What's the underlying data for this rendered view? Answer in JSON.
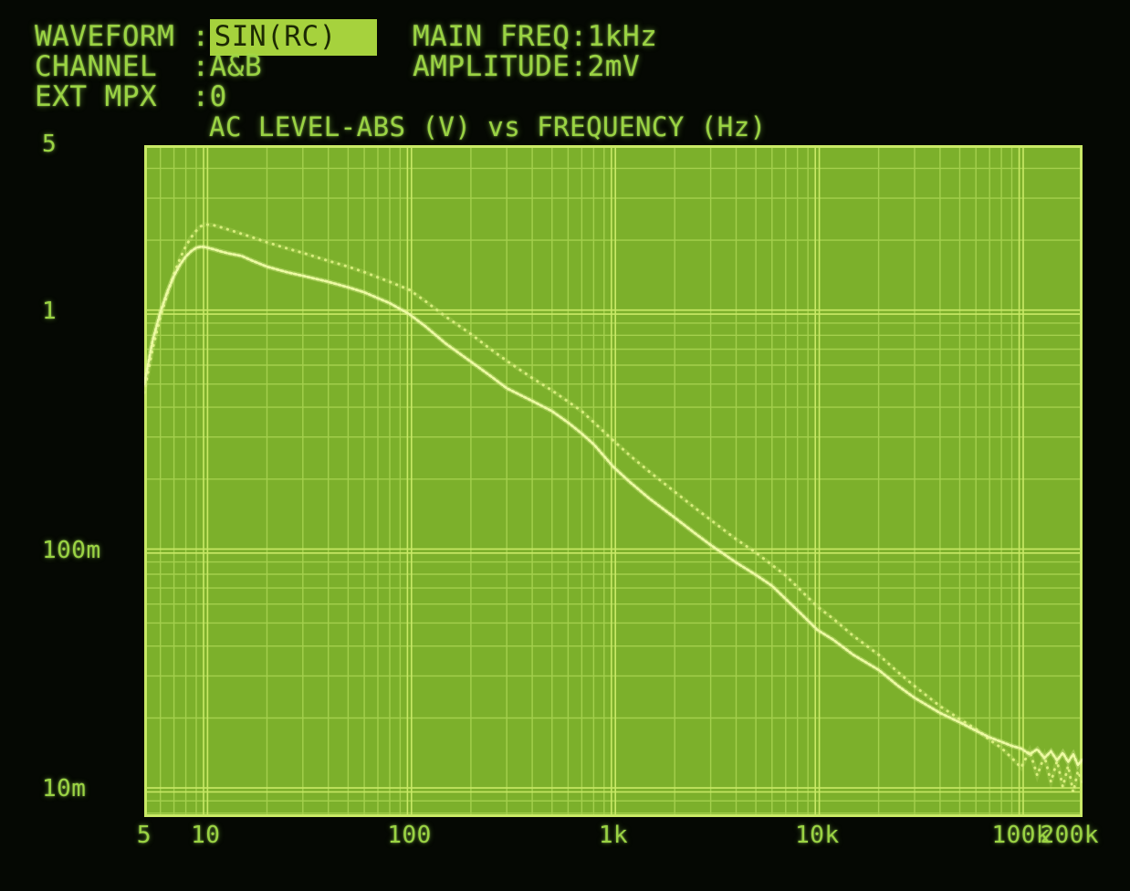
{
  "header": {
    "left_rows": [
      {
        "label": "WAVEFORM :",
        "value": "SIN(RC)",
        "highlighted": true
      },
      {
        "label": "CHANNEL  :",
        "value": "A&B"
      },
      {
        "label": "EXT MPX  :",
        "value": "0"
      }
    ],
    "right_rows": [
      {
        "label": "MAIN FREQ:",
        "value": "1kHz"
      },
      {
        "label": "AMPLITUDE:",
        "value": "2mV"
      }
    ]
  },
  "chart_data": {
    "type": "line",
    "title": "AC LEVEL-ABS (V) vs FREQUENCY (Hz)",
    "xlabel": "FREQUENCY (Hz)",
    "ylabel": "AC LEVEL-ABS (V)",
    "grid": true,
    "x_axis": {
      "scale": "log",
      "min": 5,
      "max": 200000,
      "ticks": [
        {
          "value": 5,
          "text": "5"
        },
        {
          "value": 10,
          "text": "10"
        },
        {
          "value": 100,
          "text": "100"
        },
        {
          "value": 1000,
          "text": "1k"
        },
        {
          "value": 10000,
          "text": "10k"
        },
        {
          "value": 100000,
          "text": "100k"
        },
        {
          "value": 200000,
          "text": "200k"
        }
      ]
    },
    "y_axis": {
      "scale": "log",
      "top": 5,
      "bottom": 0.0077,
      "ticks": [
        {
          "value": 5,
          "text": "5"
        },
        {
          "value": 1,
          "text": "1"
        },
        {
          "value": 0.1,
          "text": "100m"
        },
        {
          "value": 0.01,
          "text": "10m"
        }
      ]
    },
    "series": [
      {
        "name": "Channel A",
        "style": "beaded-solid",
        "points": [
          [
            5,
            0.5
          ],
          [
            5.5,
            0.76
          ],
          [
            6,
            1.0
          ],
          [
            6.5,
            1.22
          ],
          [
            7,
            1.42
          ],
          [
            7.5,
            1.58
          ],
          [
            8,
            1.71
          ],
          [
            8.5,
            1.8
          ],
          [
            9,
            1.86
          ],
          [
            9.5,
            1.88
          ],
          [
            10,
            1.87
          ],
          [
            11,
            1.83
          ],
          [
            12,
            1.79
          ],
          [
            13,
            1.76
          ],
          [
            15,
            1.72
          ],
          [
            17,
            1.64
          ],
          [
            20,
            1.55
          ],
          [
            25,
            1.47
          ],
          [
            30,
            1.42
          ],
          [
            40,
            1.34
          ],
          [
            50,
            1.27
          ],
          [
            60,
            1.21
          ],
          [
            80,
            1.09
          ],
          [
            100,
            0.98
          ],
          [
            120,
            0.87
          ],
          [
            150,
            0.74
          ],
          [
            200,
            0.62
          ],
          [
            250,
            0.54
          ],
          [
            300,
            0.48
          ],
          [
            400,
            0.425
          ],
          [
            500,
            0.385
          ],
          [
            600,
            0.345
          ],
          [
            700,
            0.31
          ],
          [
            800,
            0.28
          ],
          [
            1000,
            0.225
          ],
          [
            1200,
            0.195
          ],
          [
            1500,
            0.166
          ],
          [
            2000,
            0.138
          ],
          [
            2500,
            0.119
          ],
          [
            3000,
            0.106
          ],
          [
            4000,
            0.0895
          ],
          [
            5000,
            0.0795
          ],
          [
            6000,
            0.0715
          ],
          [
            8000,
            0.0565
          ],
          [
            10000,
            0.0468
          ],
          [
            12000,
            0.0425
          ],
          [
            15000,
            0.0368
          ],
          [
            20000,
            0.0318
          ],
          [
            25000,
            0.0272
          ],
          [
            30000,
            0.0243
          ],
          [
            40000,
            0.021
          ],
          [
            50000,
            0.0192
          ],
          [
            60000,
            0.0177
          ],
          [
            70000,
            0.0166
          ],
          [
            80000,
            0.0159
          ],
          [
            90000,
            0.0153
          ],
          [
            100000,
            0.0149
          ],
          [
            110000,
            0.0141
          ],
          [
            120000,
            0.0148
          ],
          [
            130000,
            0.0136
          ],
          [
            140000,
            0.0145
          ],
          [
            150000,
            0.0133
          ],
          [
            160000,
            0.0143
          ],
          [
            170000,
            0.0131
          ],
          [
            180000,
            0.0141
          ],
          [
            190000,
            0.0127
          ],
          [
            200000,
            0.0134
          ]
        ]
      },
      {
        "name": "Channel B",
        "style": "dotted",
        "points": [
          [
            5,
            0.46
          ],
          [
            5.5,
            0.7
          ],
          [
            6,
            0.95
          ],
          [
            6.5,
            1.2
          ],
          [
            7,
            1.45
          ],
          [
            7.5,
            1.68
          ],
          [
            8,
            1.89
          ],
          [
            8.5,
            2.06
          ],
          [
            9,
            2.19
          ],
          [
            9.5,
            2.29
          ],
          [
            10,
            2.33
          ],
          [
            11,
            2.31
          ],
          [
            12,
            2.26
          ],
          [
            14,
            2.17
          ],
          [
            16,
            2.09
          ],
          [
            20,
            1.96
          ],
          [
            25,
            1.85
          ],
          [
            30,
            1.77
          ],
          [
            40,
            1.64
          ],
          [
            50,
            1.55
          ],
          [
            60,
            1.47
          ],
          [
            80,
            1.34
          ],
          [
            100,
            1.24
          ],
          [
            120,
            1.11
          ],
          [
            150,
            0.96
          ],
          [
            200,
            0.81
          ],
          [
            250,
            0.7
          ],
          [
            300,
            0.625
          ],
          [
            400,
            0.53
          ],
          [
            500,
            0.47
          ],
          [
            700,
            0.385
          ],
          [
            1000,
            0.29
          ],
          [
            1200,
            0.252
          ],
          [
            1500,
            0.215
          ],
          [
            2000,
            0.177
          ],
          [
            2500,
            0.152
          ],
          [
            3000,
            0.135
          ],
          [
            4000,
            0.112
          ],
          [
            5000,
            0.0985
          ],
          [
            7000,
            0.079
          ],
          [
            10000,
            0.0585
          ],
          [
            12000,
            0.052
          ],
          [
            15000,
            0.0442
          ],
          [
            20000,
            0.0368
          ],
          [
            25000,
            0.031
          ],
          [
            30000,
            0.0272
          ],
          [
            40000,
            0.0224
          ],
          [
            50000,
            0.0198
          ],
          [
            60000,
            0.018
          ],
          [
            70000,
            0.0162
          ],
          [
            80000,
            0.015
          ],
          [
            90000,
            0.0136
          ],
          [
            100000,
            0.0124
          ],
          [
            110000,
            0.0146
          ],
          [
            120000,
            0.0115
          ],
          [
            130000,
            0.0139
          ],
          [
            140000,
            0.0108
          ],
          [
            150000,
            0.0132
          ],
          [
            160000,
            0.0103
          ],
          [
            170000,
            0.0126
          ],
          [
            180000,
            0.0098
          ],
          [
            190000,
            0.012
          ],
          [
            200000,
            0.0107
          ]
        ]
      }
    ],
    "colors": {
      "background": "#050803",
      "text": "#9ad343",
      "screen_fill": "#7cb02b",
      "grid_minor": "#a4d04d",
      "grid_major": "#c9e966",
      "trace_a": "#edfaa4",
      "trace_b": "#d8ee7d",
      "highlight_bg": "#a6d23d",
      "highlight_text": "#1d2a04"
    }
  }
}
